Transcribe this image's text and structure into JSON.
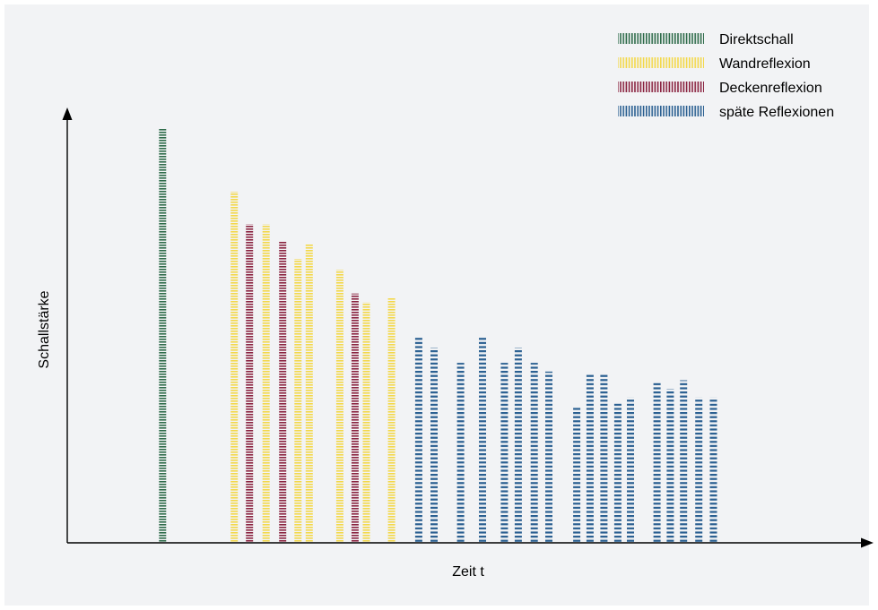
{
  "chart_data": {
    "type": "bar",
    "title": "",
    "xlabel": "Zeit t",
    "ylabel": "Schallstärke",
    "ylim": [
      0,
      100
    ],
    "grid": false,
    "legend_position": "top-right",
    "axis_color": "#000000",
    "background": "#f2f3f5",
    "series": [
      {
        "name": "Direktschall",
        "color": "#2e6b4a"
      },
      {
        "name": "Wandreflexion",
        "color": "#f3d84a"
      },
      {
        "name": "Deckenreflexion",
        "color": "#8a2340"
      },
      {
        "name": "späte Reflexionen",
        "color": "#2a5f91"
      }
    ],
    "bars": [
      {
        "x": 24.5,
        "value": 95.5,
        "series": "Direktschall"
      },
      {
        "x": 35.3,
        "value": 81.0,
        "series": "Wandreflexion"
      },
      {
        "x": 37.6,
        "value": 73.5,
        "series": "Deckenreflexion"
      },
      {
        "x": 40.1,
        "value": 73.5,
        "series": "Wandreflexion"
      },
      {
        "x": 42.6,
        "value": 69.5,
        "series": "Deckenreflexion"
      },
      {
        "x": 44.9,
        "value": 65.5,
        "series": "Wandreflexion"
      },
      {
        "x": 46.6,
        "value": 69.0,
        "series": "Wandreflexion"
      },
      {
        "x": 51.2,
        "value": 63.0,
        "series": "Wandreflexion"
      },
      {
        "x": 53.5,
        "value": 57.5,
        "series": "Deckenreflexion"
      },
      {
        "x": 55.2,
        "value": 55.5,
        "series": "Wandreflexion"
      },
      {
        "x": 59.0,
        "value": 56.5,
        "series": "Wandreflexion"
      },
      {
        "x": 63.1,
        "value": 47.5,
        "series": "späte Reflexionen"
      },
      {
        "x": 65.4,
        "value": 45.0,
        "series": "späte Reflexionen"
      },
      {
        "x": 69.4,
        "value": 41.5,
        "series": "späte Reflexionen"
      },
      {
        "x": 72.7,
        "value": 47.5,
        "series": "späte Reflexionen"
      },
      {
        "x": 76.0,
        "value": 41.5,
        "series": "späte Reflexionen"
      },
      {
        "x": 78.1,
        "value": 45.0,
        "series": "späte Reflexionen"
      },
      {
        "x": 80.5,
        "value": 41.5,
        "series": "späte Reflexionen"
      },
      {
        "x": 82.7,
        "value": 39.5,
        "series": "späte Reflexionen"
      },
      {
        "x": 86.9,
        "value": 31.5,
        "series": "späte Reflexionen"
      },
      {
        "x": 88.9,
        "value": 39.0,
        "series": "späte Reflexionen"
      },
      {
        "x": 91.0,
        "value": 39.0,
        "series": "späte Reflexionen"
      },
      {
        "x": 93.1,
        "value": 32.5,
        "series": "späte Reflexionen"
      },
      {
        "x": 95.0,
        "value": 33.5,
        "series": "späte Reflexionen"
      },
      {
        "x": 99.0,
        "value": 37.0,
        "series": "späte Reflexionen"
      },
      {
        "x": 101.0,
        "value": 35.5,
        "series": "späte Reflexionen"
      },
      {
        "x": 103.0,
        "value": 37.5,
        "series": "späte Reflexionen"
      },
      {
        "x": 105.3,
        "value": 33.5,
        "series": "späte Reflexionen"
      },
      {
        "x": 107.5,
        "value": 33.5,
        "series": "späte Reflexionen"
      }
    ]
  }
}
